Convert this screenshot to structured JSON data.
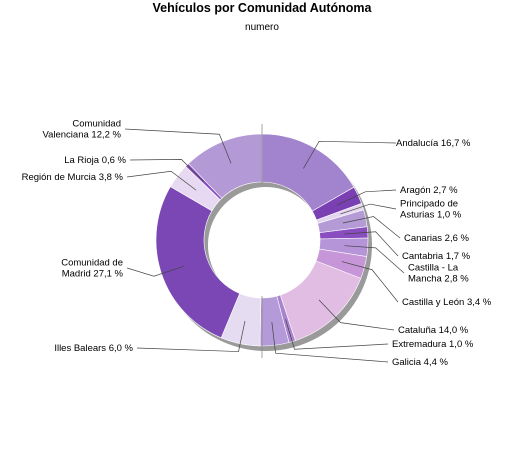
{
  "chart_data": {
    "type": "pie",
    "donut": true,
    "title": "Vehículos por Comunidad Autónoma",
    "subtitle": "numero",
    "unit": "%",
    "slices": [
      {
        "label": "Andalucía",
        "display": "Andalucía 16,7 %",
        "value": 16.7,
        "color": "#a283cd"
      },
      {
        "label": "Aragón",
        "display": "Aragón 2,7 %",
        "value": 2.7,
        "color": "#7a3fb3"
      },
      {
        "label": "Principado de Asturias",
        "display": "Principado de Asturias 1,0 %",
        "value": 1.0,
        "color": "#e4d6ef"
      },
      {
        "label": "Canarias",
        "display": "Canarias 2,6 %",
        "value": 2.6,
        "color": "#b59bd6"
      },
      {
        "label": "Cantabria",
        "display": "Cantabria 1,7 %",
        "value": 1.7,
        "color": "#8a4dc0"
      },
      {
        "label": "Castilla - La Mancha",
        "display": "Castilla - La Mancha 2,8 %",
        "value": 2.8,
        "color": "#b594d8"
      },
      {
        "label": "Castilla y León",
        "display": "Castilla y León 3,4 %",
        "value": 3.4,
        "color": "#c796d8"
      },
      {
        "label": "Cataluña",
        "display": "Cataluña 14,0 %",
        "value": 14.0,
        "color": "#e2bde3"
      },
      {
        "label": "Extremadura",
        "display": "Extremadura 1,0 %",
        "value": 1.0,
        "color": "#a983cf"
      },
      {
        "label": "Galicia",
        "display": "Galicia 4,4 %",
        "value": 4.4,
        "color": "#b49ad8"
      },
      {
        "label": "Illes Balears",
        "display": "Illes Balears 6,0 %",
        "value": 6.0,
        "color": "#e6dcf1"
      },
      {
        "label": "Comunidad de Madrid",
        "display": "Comunidad de Madrid 27,1 %",
        "value": 27.1,
        "color": "#7a47b4"
      },
      {
        "label": "Región de Murcia",
        "display": "Región de Murcia 3,8 %",
        "value": 3.8,
        "color": "#e7d9f1"
      },
      {
        "label": "La Rioja",
        "display": "La Rioja 0,6 %",
        "value": 0.6,
        "color": "#8a4cc0"
      },
      {
        "label": "Comunidad Valenciana",
        "display": "Comunidad Valenciana 12,2 %",
        "value": 12.2,
        "color": "#b39ad6"
      }
    ]
  }
}
